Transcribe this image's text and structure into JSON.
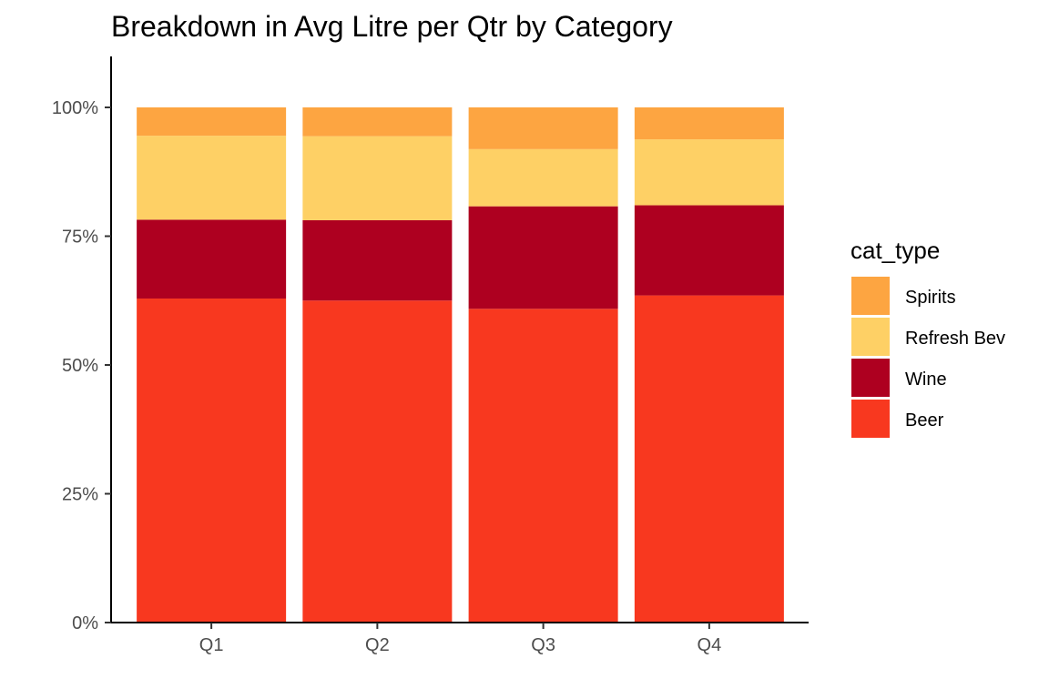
{
  "chart_data": {
    "type": "bar",
    "stacked": true,
    "normalized": true,
    "title": "Breakdown in Avg Litre per Qtr by Category",
    "xlabel": "",
    "ylabel": "",
    "categories": [
      "Q1",
      "Q2",
      "Q3",
      "Q4"
    ],
    "y_ticks": [
      "0%",
      "25%",
      "50%",
      "75%",
      "100%"
    ],
    "ylim": [
      0,
      1
    ],
    "grid": false,
    "legend": {
      "title": "cat_type",
      "position": "right"
    },
    "series": [
      {
        "name": "Beer",
        "color": "#F8381F",
        "values": [
          0.629,
          0.625,
          0.609,
          0.635
        ]
      },
      {
        "name": "Wine",
        "color": "#AE0020",
        "values": [
          0.153,
          0.156,
          0.199,
          0.175
        ]
      },
      {
        "name": "Refresh Bev",
        "color": "#FED065",
        "values": [
          0.163,
          0.163,
          0.111,
          0.128
        ]
      },
      {
        "name": "Spirits",
        "color": "#FDA541",
        "values": [
          0.055,
          0.056,
          0.081,
          0.062
        ]
      }
    ]
  }
}
